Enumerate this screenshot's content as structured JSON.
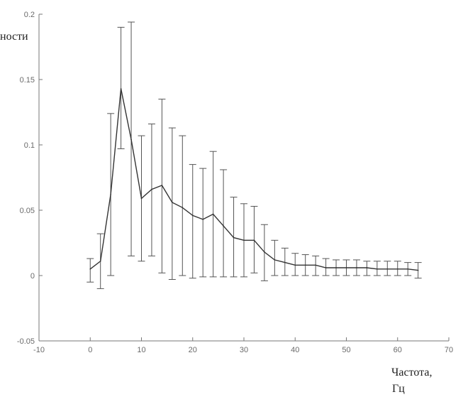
{
  "chart_data": {
    "type": "line",
    "title": "",
    "ylabel": "ности",
    "xlabel_line1": "Частота,",
    "xlabel_line2": "Гц",
    "xlim": [
      -10,
      70
    ],
    "ylim": [
      -0.05,
      0.2
    ],
    "x_ticks": [
      -10,
      0,
      10,
      20,
      30,
      40,
      50,
      60,
      70
    ],
    "x_tick_labels": [
      "-10",
      "0",
      "10",
      "20",
      "30",
      "40",
      "50",
      "60",
      "70"
    ],
    "y_ticks": [
      -0.05,
      0,
      0.05,
      0.1,
      0.15,
      0.2
    ],
    "y_tick_labels": [
      "-0.05",
      "0",
      "0.05",
      "0.1",
      "0.15",
      "0.2"
    ],
    "grid": false,
    "series": [
      {
        "x": [
          0,
          2,
          4,
          6,
          8,
          10,
          12,
          14,
          16,
          18,
          20,
          22,
          24,
          26,
          28,
          30,
          32,
          34,
          36,
          38,
          40,
          42,
          44,
          46,
          48,
          50,
          52,
          54,
          56,
          58,
          60,
          62,
          64
        ],
        "y": [
          0.005,
          0.011,
          0.062,
          0.143,
          0.104,
          0.059,
          0.066,
          0.069,
          0.056,
          0.052,
          0.046,
          0.043,
          0.047,
          0.038,
          0.029,
          0.027,
          0.027,
          0.018,
          0.012,
          0.01,
          0.008,
          0.008,
          0.008,
          0.006,
          0.006,
          0.006,
          0.006,
          0.006,
          0.005,
          0.005,
          0.005,
          0.005,
          0.004
        ],
        "err_low": [
          -0.005,
          -0.01,
          0.0,
          0.097,
          0.015,
          0.011,
          0.015,
          0.002,
          -0.003,
          0.0,
          -0.002,
          -0.001,
          -0.001,
          -0.001,
          -0.001,
          -0.001,
          0.002,
          -0.004,
          0.0,
          0.0,
          0.0,
          0.0,
          0.0,
          0.0,
          0.0,
          0.0,
          0.0,
          0.0,
          0.0,
          0.0,
          0.0,
          0.0,
          -0.002
        ],
        "err_high": [
          0.013,
          0.032,
          0.124,
          0.19,
          0.194,
          0.107,
          0.116,
          0.135,
          0.113,
          0.107,
          0.085,
          0.082,
          0.095,
          0.081,
          0.06,
          0.055,
          0.053,
          0.039,
          0.027,
          0.021,
          0.017,
          0.016,
          0.015,
          0.013,
          0.012,
          0.012,
          0.012,
          0.011,
          0.011,
          0.011,
          0.011,
          0.01,
          0.01
        ]
      }
    ]
  },
  "colors": {
    "line": "#333333",
    "errorbar": "#555555",
    "axis": "#777777",
    "text": "#6a6a6a"
  }
}
